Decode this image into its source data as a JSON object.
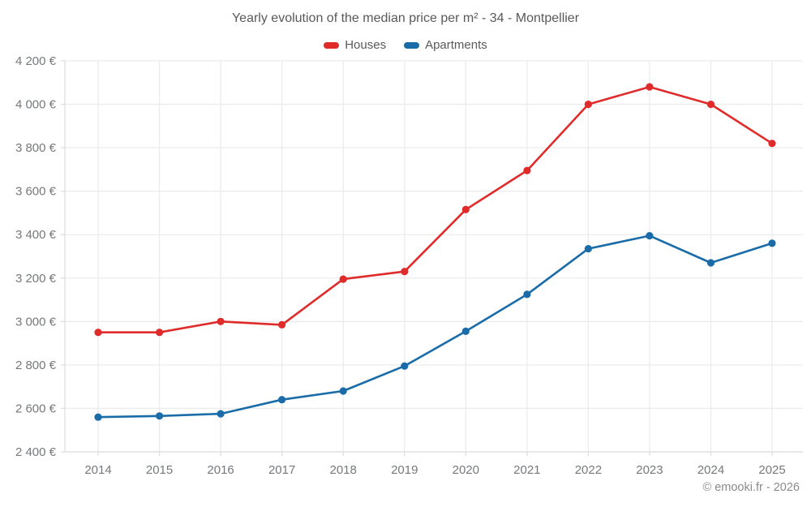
{
  "chart_data": {
    "type": "line",
    "title": "Yearly evolution of the median price per m² - 34 - Montpellier",
    "footer": "© emooki.fr - 2026",
    "categories": [
      "2014",
      "2015",
      "2016",
      "2017",
      "2018",
      "2019",
      "2020",
      "2021",
      "2022",
      "2023",
      "2024",
      "2025"
    ],
    "series": [
      {
        "name": "Houses",
        "color": "#e02b2b",
        "values": [
          2950,
          2950,
          3000,
          2985,
          3195,
          3230,
          3515,
          3695,
          4000,
          4080,
          4000,
          3820
        ]
      },
      {
        "name": "Apartments",
        "color": "#1a6ca8",
        "values": [
          2560,
          2565,
          2575,
          2640,
          2680,
          2795,
          2955,
          3125,
          3335,
          3395,
          3270,
          3360
        ]
      }
    ],
    "xlabel": "",
    "ylabel": "",
    "ylim": [
      2400,
      4200
    ],
    "y_ticks": [
      2400,
      2600,
      2800,
      3000,
      3200,
      3400,
      3600,
      3800,
      4000,
      4200
    ],
    "y_tick_labels": [
      "2 400 €",
      "2 600 €",
      "2 800 €",
      "3 000 €",
      "3 200 €",
      "3 400 €",
      "3 600 €",
      "3 800 €",
      "4 000 €",
      "4 200 €"
    ],
    "grid": true,
    "legend_position": "top",
    "colors": {
      "grid_line": "#ececec",
      "axis_line": "#dedede",
      "tick_text": "#76787a",
      "title_text": "#58595b",
      "footer_text": "#8a8a8a"
    }
  }
}
